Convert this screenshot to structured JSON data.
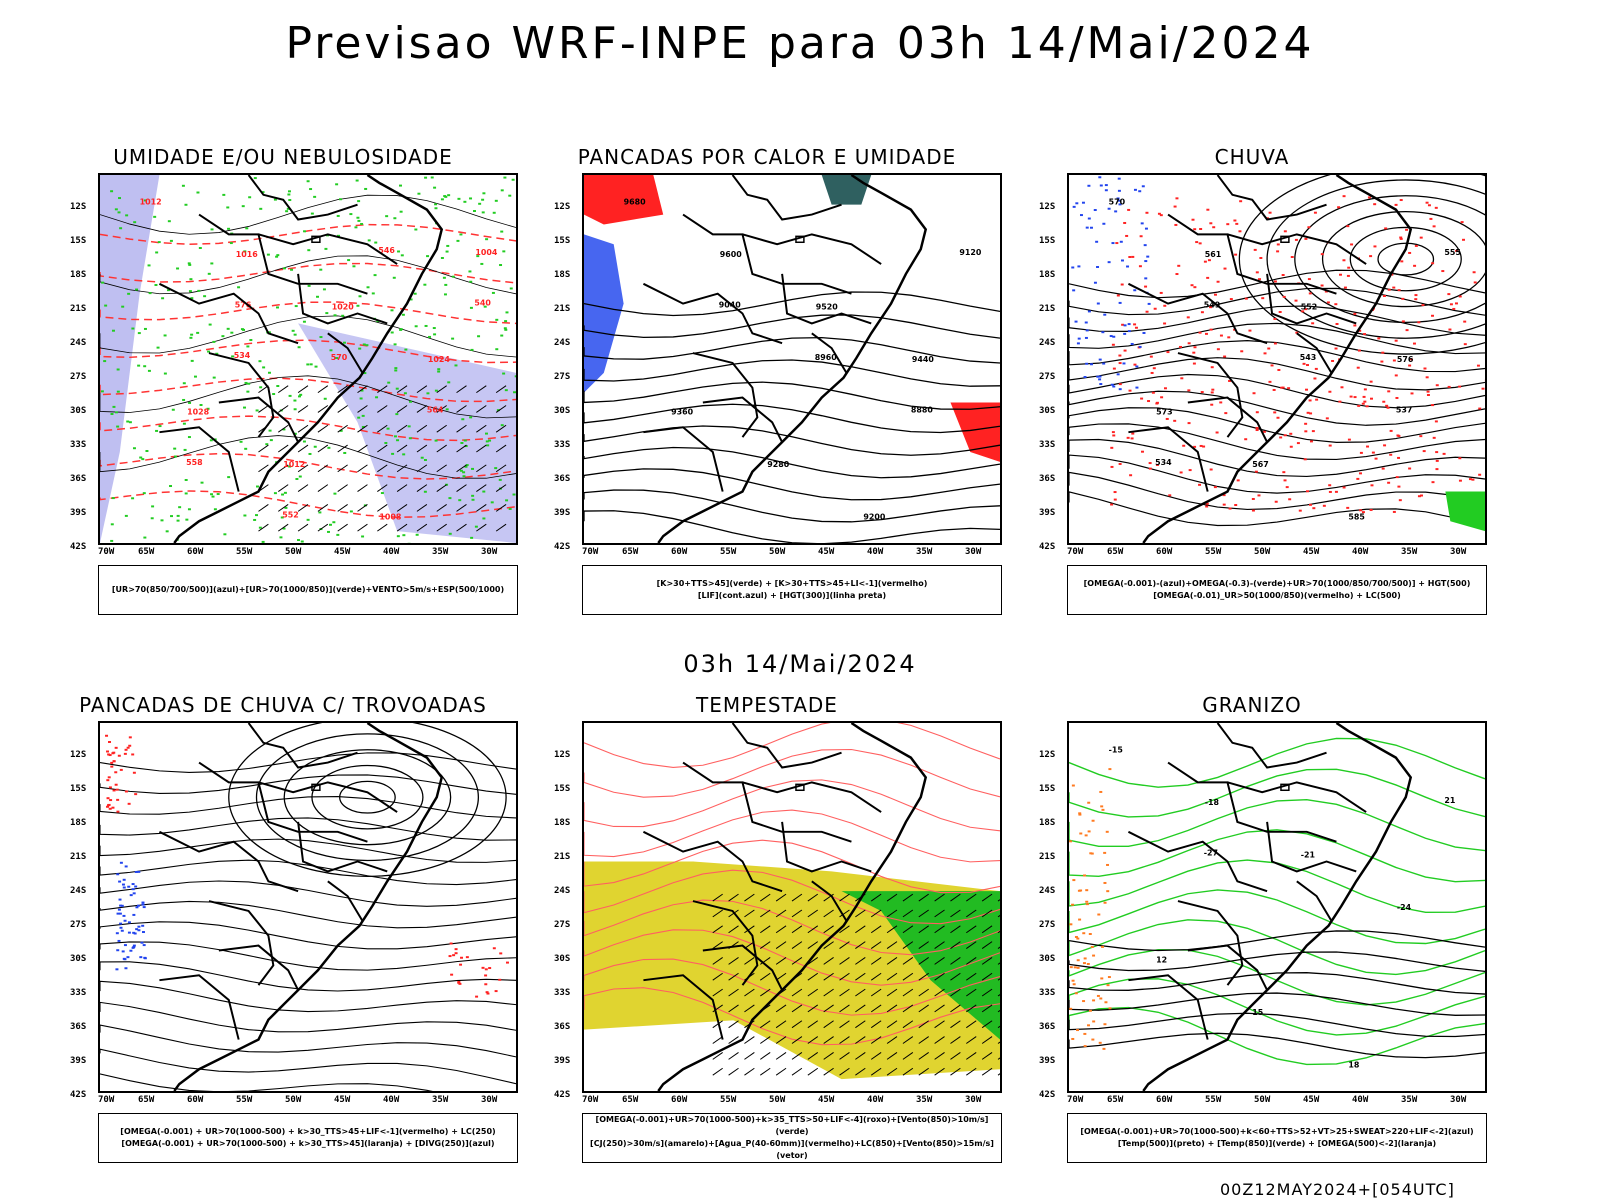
{
  "header": {
    "title": "Previsao WRF-INPE  para 03h 14/Mai/2024",
    "mid_title": "03h 14/Mai/2024",
    "footer": "00Z12MAY2024+[054UTC]"
  },
  "axes": {
    "lat_labels": [
      "12S",
      "15S",
      "18S",
      "21S",
      "24S",
      "27S",
      "30S",
      "33S",
      "36S",
      "39S",
      "42S"
    ],
    "lon_labels": [
      "70W",
      "65W",
      "60W",
      "55W",
      "50W",
      "45W",
      "40W",
      "35W",
      "30W"
    ]
  },
  "panels": [
    {
      "title": "UMIDADE E/OU NEBULOSIDADE",
      "legend": [
        "[UR>70(850/700/500)](azul)+[UR>70(1000/850)](verde)+VENTO>5m/s+ESP(500/1000)"
      ]
    },
    {
      "title": "PANCADAS POR CALOR E UMIDADE",
      "legend": [
        "[K>30+TTS>45](verde) + [K>30+TTS>45+LI<-1](vermelho)",
        "[LIF](cont.azul) + [HGT(300)](linha preta)"
      ]
    },
    {
      "title": "CHUVA",
      "legend": [
        "[OMEGA(-0.001)-(azul)+OMEGA(-0.3)-(verde)+UR>70(1000/850/700/500)] + HGT(500)",
        "[OMEGA(-0.01)_UR>50(1000/850)(vermelho) + LC(500)"
      ]
    },
    {
      "title": "PANCADAS DE CHUVA C/ TROVOADAS",
      "legend": [
        "[OMEGA(-0.001) + UR>70(1000-500) + k>30_TTS>45+LIF<-1](vermelho) + LC(250)",
        "[OMEGA(-0.001) + UR>70(1000-500) + k>30_TTS>45](laranja) + [DIVG(250)](azul)"
      ]
    },
    {
      "title": "TEMPESTADE",
      "legend": [
        "[OMEGA(-0.001)+UR>70(1000-500)+k>35_TTS>50+LIF<-4](roxo)+[Vento(850)>10m/s](verde)",
        "[CJ(250)>30m/s](amarelo)+[Agua_P(40-60mm)](vermelho)+LC(850)+[Vento(850)>15m/s](vetor)"
      ]
    },
    {
      "title": "GRANIZO",
      "legend": [
        "[OMEGA(-0.001)+UR>70(1000-500)+k<60+TTS>52+VT>25+SWEAT>220+LIF<-2](azul)",
        "[Temp(500)](preto) + [Temp(850)](verde) + [OMEGA(500)<-2](laranja)"
      ]
    }
  ],
  "map_labels": {
    "p1": [
      "1012",
      "1016",
      "1020",
      "1024",
      "1028",
      "1012",
      "1008",
      "1004",
      "576",
      "570",
      "564",
      "558",
      "552",
      "546",
      "540",
      "534"
    ],
    "p2": [
      "9680",
      "9600",
      "9520",
      "9440",
      "9360",
      "9280",
      "9200",
      "9120",
      "9040",
      "8960",
      "8880"
    ],
    "p3": [
      "570",
      "561",
      "552",
      "576",
      "573",
      "567",
      "585",
      "555",
      "549",
      "543",
      "537",
      "534"
    ],
    "p6": [
      "-15",
      "-18",
      "-21",
      "-24",
      "12",
      "15",
      "18",
      "21",
      "-27"
    ]
  }
}
